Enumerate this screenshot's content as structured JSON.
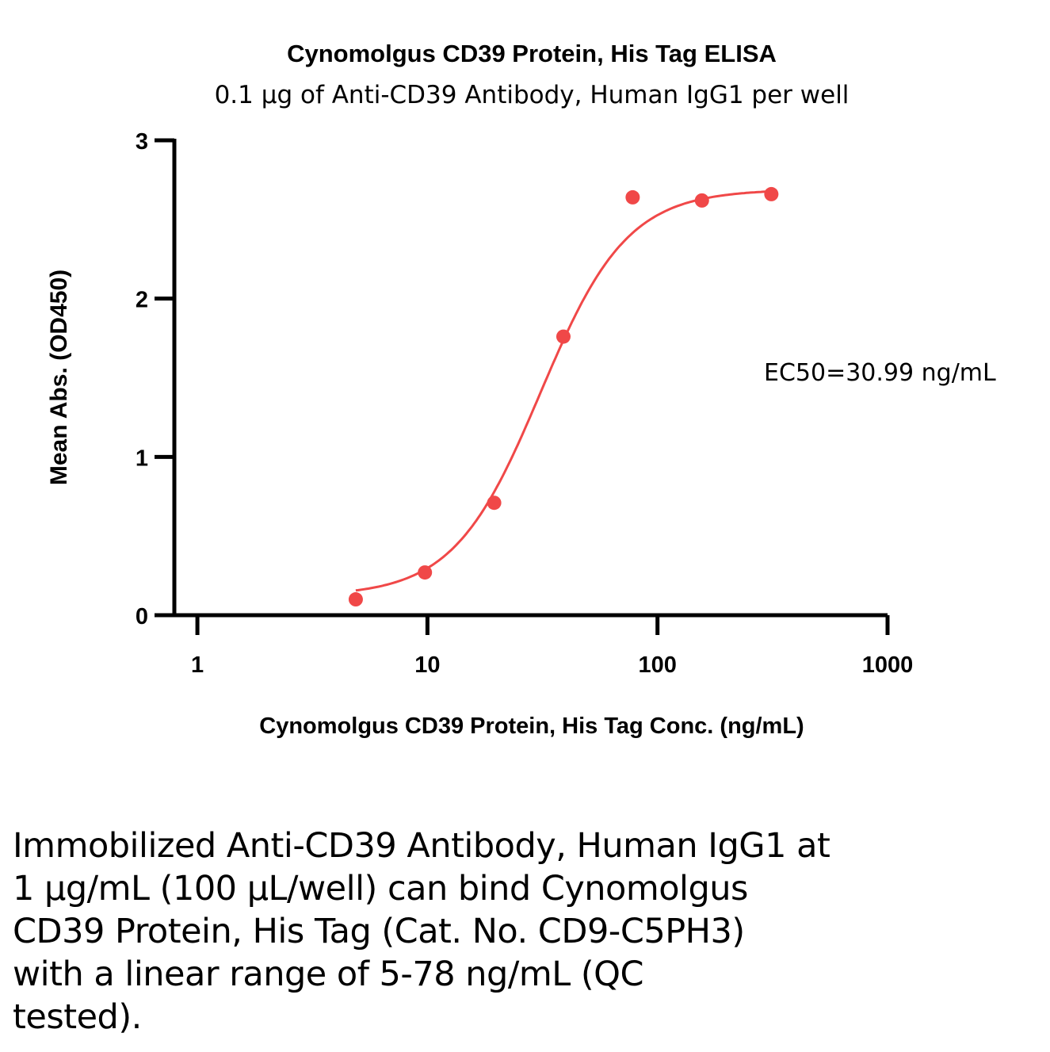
{
  "chart_data": {
    "type": "scatter",
    "title": "Cynomolgus CD39 Protein, His Tag ELISA",
    "subtitle": "0.1 µg of Anti-CD39 Antibody, Human IgG1 per well",
    "xlabel": "Cynomolgus CD39 Protein, His Tag Conc. (ng/mL)",
    "ylabel": "Mean Abs. (OD450)",
    "xscale": "log",
    "xlim": [
      0.794,
      1000
    ],
    "ylim": [
      0,
      3
    ],
    "xticks": [
      "1",
      "10",
      "100",
      "1000"
    ],
    "xtick_values": [
      1,
      10,
      100,
      1000
    ],
    "yticks": [
      "0",
      "1",
      "2",
      "3"
    ],
    "ytick_values": [
      0,
      1,
      2,
      3
    ],
    "grid": false,
    "color": "#f04848",
    "series": [
      {
        "name": "Mean Abs.",
        "x": [
          4.88,
          9.75,
          19.5,
          39,
          78,
          156,
          312.5
        ],
        "y": [
          0.1,
          0.27,
          0.71,
          1.76,
          2.64,
          2.62,
          2.66
        ]
      }
    ],
    "fit": {
      "model": "4PL",
      "bottom": 0.12,
      "top": 2.69,
      "ec50": 30.99,
      "hill": 2.3,
      "x_range": [
        4.88,
        312.5
      ]
    },
    "annotation": "EC50=30.99 ng/mL"
  },
  "caption_lines": [
    "Immobilized Anti-CD39 Antibody, Human IgG1 at",
    "1 µg/mL (100 µL/well) can bind Cynomolgus",
    "CD39 Protein, His Tag (Cat. No. CD9-C5PH3)",
    "with a linear range of 5-78 ng/mL (QC",
    "tested)."
  ]
}
